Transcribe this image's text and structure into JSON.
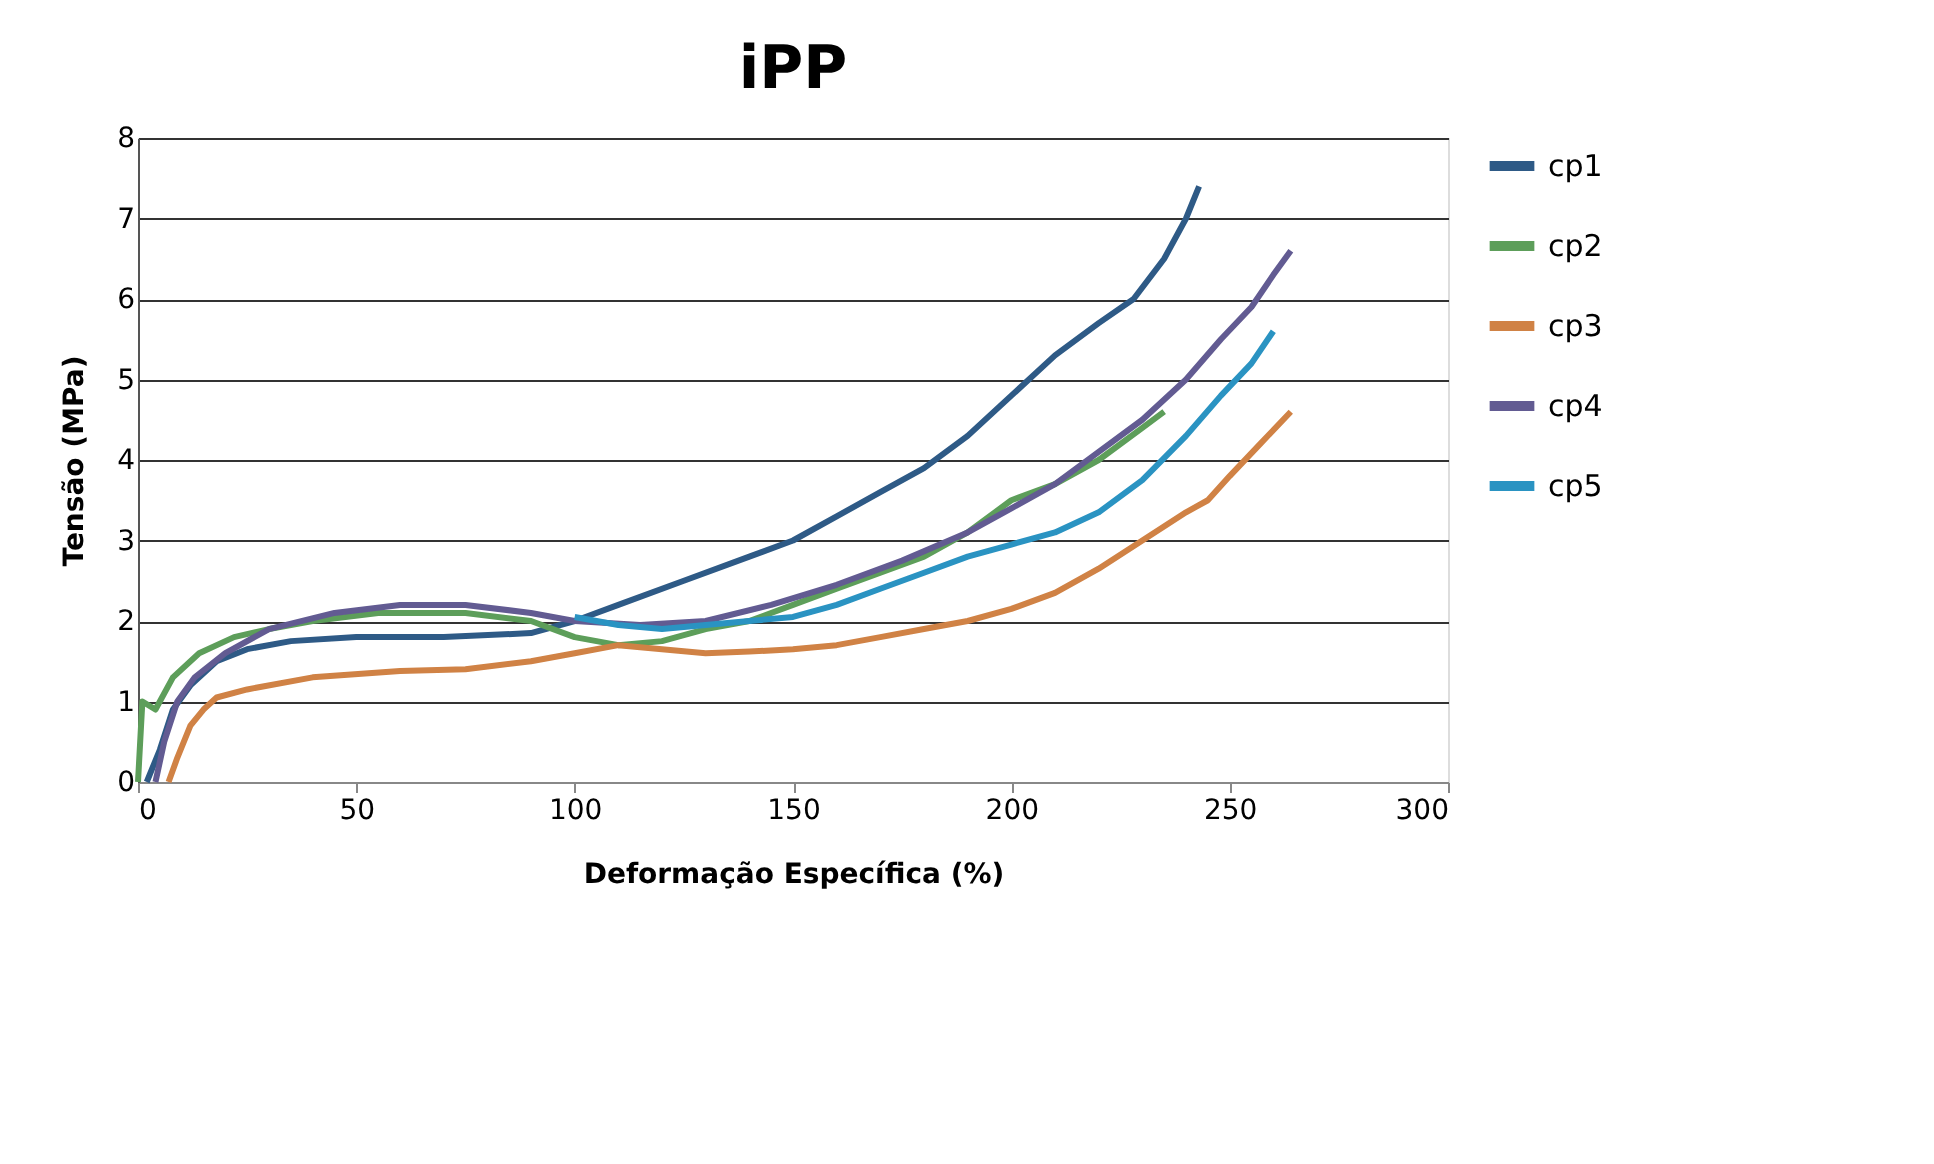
{
  "chart_data": {
    "type": "line",
    "title": "iPP",
    "xlabel": "Deformação Específica (%)",
    "ylabel": "Tensão (MPa)",
    "xlim": [
      0,
      300
    ],
    "xticks": [
      0,
      50,
      100,
      150,
      200,
      250,
      300
    ],
    "ylim": [
      0,
      8
    ],
    "yticks": [
      0,
      1,
      2,
      3,
      4,
      5,
      6,
      7,
      8
    ],
    "grid": "y",
    "legend": "right",
    "marker": "none",
    "line_style": "solid",
    "series": [
      {
        "name": "cp1",
        "color": "#2e5a86",
        "x": [
          2,
          5,
          8,
          12,
          18,
          25,
          35,
          50,
          70,
          90,
          100,
          110,
          125,
          140,
          150,
          160,
          170,
          180,
          190,
          200,
          210,
          220,
          228,
          235,
          240,
          243
        ],
        "values": [
          0,
          0.4,
          0.9,
          1.2,
          1.5,
          1.65,
          1.75,
          1.8,
          1.8,
          1.85,
          2.0,
          2.2,
          2.5,
          2.8,
          3.0,
          3.3,
          3.6,
          3.9,
          4.3,
          4.8,
          5.3,
          5.7,
          6.0,
          6.5,
          7.0,
          7.4
        ]
      },
      {
        "name": "cp2",
        "color": "#5d9e5a",
        "x": [
          0,
          1,
          4,
          8,
          14,
          22,
          30,
          40,
          55,
          75,
          90,
          100,
          110,
          120,
          130,
          140,
          150,
          160,
          170,
          180,
          190,
          200,
          210,
          220,
          230,
          235
        ],
        "values": [
          0,
          1.0,
          0.9,
          1.3,
          1.6,
          1.8,
          1.9,
          2.0,
          2.1,
          2.1,
          2.0,
          1.8,
          1.7,
          1.75,
          1.9,
          2.0,
          2.2,
          2.4,
          2.6,
          2.8,
          3.1,
          3.5,
          3.7,
          4.0,
          4.4,
          4.6
        ]
      },
      {
        "name": "cp3",
        "color": "#d08245",
        "x": [
          7,
          9,
          12,
          15,
          18,
          25,
          40,
          60,
          75,
          90,
          100,
          110,
          120,
          130,
          140,
          150,
          160,
          170,
          180,
          190,
          200,
          210,
          220,
          230,
          240,
          245,
          250,
          257,
          264
        ],
        "values": [
          0,
          0.3,
          0.7,
          0.9,
          1.05,
          1.15,
          1.3,
          1.38,
          1.4,
          1.5,
          1.6,
          1.7,
          1.65,
          1.6,
          1.62,
          1.65,
          1.7,
          1.8,
          1.9,
          2.0,
          2.15,
          2.35,
          2.65,
          3.0,
          3.35,
          3.5,
          3.8,
          4.2,
          4.6
        ]
      },
      {
        "name": "cp4",
        "color": "#625b92",
        "x": [
          4,
          6,
          9,
          13,
          20,
          30,
          45,
          60,
          75,
          90,
          100,
          115,
          130,
          145,
          160,
          175,
          190,
          200,
          210,
          220,
          230,
          240,
          248,
          255,
          260,
          264
        ],
        "values": [
          0,
          0.5,
          1.0,
          1.3,
          1.6,
          1.9,
          2.1,
          2.2,
          2.2,
          2.1,
          2.0,
          1.95,
          2.0,
          2.2,
          2.45,
          2.75,
          3.1,
          3.4,
          3.7,
          4.1,
          4.5,
          5.0,
          5.5,
          5.9,
          6.3,
          6.6
        ]
      },
      {
        "name": "cp5",
        "color": "#2a93c2",
        "x": [
          100,
          110,
          120,
          130,
          140,
          150,
          160,
          170,
          180,
          190,
          200,
          210,
          220,
          230,
          240,
          248,
          255,
          260
        ],
        "values": [
          2.05,
          1.95,
          1.9,
          1.95,
          2.0,
          2.05,
          2.2,
          2.4,
          2.6,
          2.8,
          2.95,
          3.1,
          3.35,
          3.75,
          4.3,
          4.8,
          5.2,
          5.6
        ]
      }
    ]
  }
}
